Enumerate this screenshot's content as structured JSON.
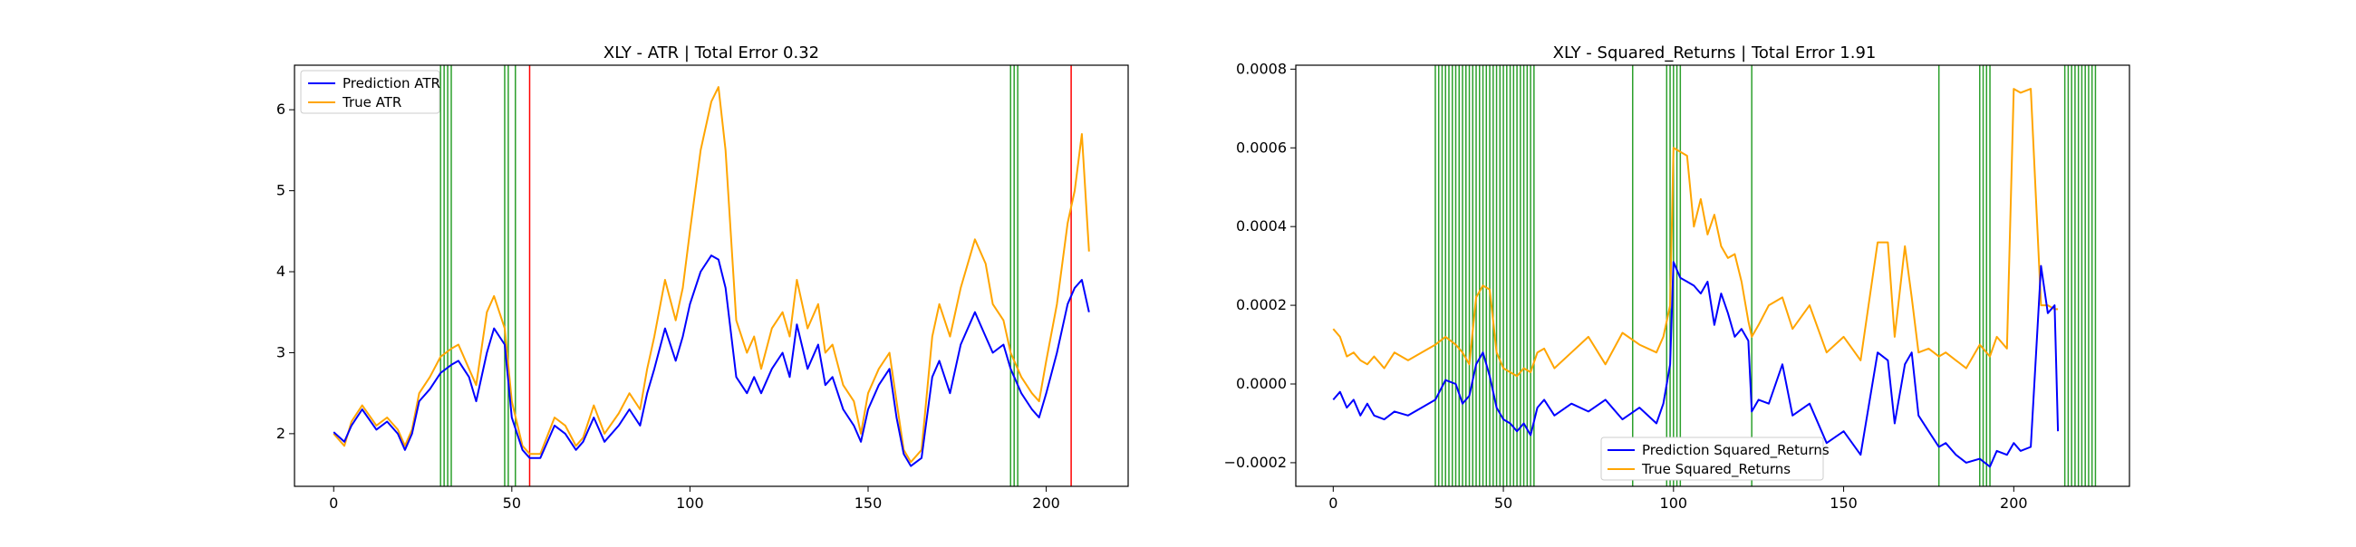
{
  "figure": {
    "background": "#ffffff",
    "colors": {
      "prediction": "#0000ff",
      "true": "#ffa500",
      "green_marker": "#2ca02c",
      "red_marker": "#ff0000"
    }
  },
  "chart_data": [
    {
      "type": "line",
      "title": "XLY - ATR | Total Error 0.32",
      "xlabel": "",
      "ylabel": "",
      "xlim": [
        -11,
        223
      ],
      "ylim": [
        1.35,
        6.55
      ],
      "xticks": [
        0,
        50,
        100,
        150,
        200
      ],
      "yticks": [
        2,
        3,
        4,
        5,
        6
      ],
      "grid": false,
      "legend_placement": "top-left",
      "series": [
        {
          "name": "Prediction ATR",
          "color": "#0000ff",
          "x": [
            0,
            3,
            5,
            8,
            12,
            15,
            18,
            20,
            22,
            24,
            27,
            30,
            33,
            35,
            38,
            40,
            43,
            45,
            48,
            50,
            53,
            55,
            58,
            62,
            65,
            68,
            70,
            73,
            76,
            80,
            83,
            86,
            88,
            90,
            93,
            96,
            98,
            100,
            103,
            106,
            108,
            110,
            113,
            116,
            118,
            120,
            123,
            126,
            128,
            130,
            133,
            136,
            138,
            140,
            143,
            146,
            148,
            150,
            153,
            156,
            158,
            160,
            162,
            165,
            168,
            170,
            173,
            176,
            180,
            183,
            185,
            188,
            190,
            193,
            196,
            198,
            200,
            203,
            206,
            208,
            210,
            212
          ],
          "y": [
            2.02,
            1.9,
            2.1,
            2.3,
            2.05,
            2.15,
            2.0,
            1.8,
            2.0,
            2.4,
            2.55,
            2.75,
            2.85,
            2.9,
            2.7,
            2.4,
            3.0,
            3.3,
            3.1,
            2.2,
            1.8,
            1.7,
            1.7,
            2.1,
            2.0,
            1.8,
            1.9,
            2.2,
            1.9,
            2.1,
            2.3,
            2.1,
            2.5,
            2.8,
            3.3,
            2.9,
            3.2,
            3.6,
            4.0,
            4.2,
            4.15,
            3.8,
            2.7,
            2.5,
            2.7,
            2.5,
            2.8,
            3.0,
            2.7,
            3.35,
            2.8,
            3.1,
            2.6,
            2.7,
            2.3,
            2.1,
            1.9,
            2.3,
            2.6,
            2.8,
            2.2,
            1.75,
            1.6,
            1.7,
            2.7,
            2.9,
            2.5,
            3.1,
            3.5,
            3.2,
            3.0,
            3.1,
            2.8,
            2.5,
            2.3,
            2.2,
            2.5,
            3.0,
            3.6,
            3.8,
            3.9,
            3.5
          ]
        },
        {
          "name": "True ATR",
          "color": "#ffa500",
          "x": [
            0,
            3,
            5,
            8,
            12,
            15,
            18,
            20,
            22,
            24,
            27,
            30,
            33,
            35,
            38,
            40,
            43,
            45,
            48,
            50,
            53,
            55,
            58,
            62,
            65,
            68,
            70,
            73,
            76,
            80,
            83,
            86,
            88,
            90,
            93,
            96,
            98,
            100,
            103,
            106,
            108,
            110,
            113,
            116,
            118,
            120,
            123,
            126,
            128,
            130,
            133,
            136,
            138,
            140,
            143,
            146,
            148,
            150,
            153,
            156,
            158,
            160,
            162,
            165,
            168,
            170,
            173,
            176,
            180,
            183,
            185,
            188,
            190,
            193,
            196,
            198,
            200,
            203,
            206,
            208,
            210,
            212
          ],
          "y": [
            2.0,
            1.85,
            2.15,
            2.35,
            2.1,
            2.2,
            2.05,
            1.85,
            2.05,
            2.5,
            2.7,
            2.95,
            3.05,
            3.1,
            2.8,
            2.6,
            3.5,
            3.7,
            3.3,
            2.4,
            1.85,
            1.75,
            1.75,
            2.2,
            2.1,
            1.85,
            1.95,
            2.35,
            2.0,
            2.25,
            2.5,
            2.3,
            2.8,
            3.2,
            3.9,
            3.4,
            3.8,
            4.5,
            5.5,
            6.1,
            6.28,
            5.5,
            3.4,
            3.0,
            3.2,
            2.8,
            3.3,
            3.5,
            3.2,
            3.9,
            3.3,
            3.6,
            3.0,
            3.1,
            2.6,
            2.4,
            2.0,
            2.5,
            2.8,
            3.0,
            2.4,
            1.8,
            1.65,
            1.8,
            3.2,
            3.6,
            3.2,
            3.8,
            4.4,
            4.1,
            3.6,
            3.4,
            3.0,
            2.7,
            2.5,
            2.4,
            2.9,
            3.6,
            4.6,
            5.0,
            5.7,
            4.25
          ]
        }
      ],
      "markers": {
        "green_x": [
          30,
          31,
          32,
          33,
          48,
          49,
          51,
          190,
          191,
          192
        ],
        "red_x": [
          55,
          207
        ]
      }
    },
    {
      "type": "line",
      "title": "XLY - Squared_Returns | Total Error 1.91",
      "xlabel": "",
      "ylabel": "",
      "xlim": [
        -11,
        234
      ],
      "ylim": [
        -0.00026,
        0.00081
      ],
      "xticks": [
        0,
        50,
        100,
        150,
        200
      ],
      "yticks": [
        -0.0002,
        0.0,
        0.0002,
        0.0004,
        0.0006,
        0.0008
      ],
      "ytick_labels": [
        "−0.0002",
        "0.0000",
        "0.0002",
        "0.0004",
        "0.0006",
        "0.0008"
      ],
      "grid": false,
      "legend_placement": "lower center",
      "series": [
        {
          "name": "Prediction Squared_Returns",
          "color": "#0000ff",
          "x": [
            0,
            2,
            4,
            6,
            8,
            10,
            12,
            15,
            18,
            22,
            26,
            30,
            33,
            36,
            38,
            40,
            42,
            44,
            46,
            48,
            50,
            52,
            54,
            56,
            58,
            60,
            62,
            65,
            70,
            75,
            80,
            85,
            90,
            95,
            97,
            99,
            100,
            102,
            104,
            106,
            108,
            110,
            112,
            114,
            116,
            118,
            120,
            122,
            123,
            125,
            128,
            132,
            135,
            140,
            145,
            150,
            155,
            160,
            163,
            165,
            168,
            170,
            172,
            175,
            178,
            180,
            183,
            186,
            190,
            193,
            195,
            198,
            200,
            202,
            205,
            208,
            210,
            212,
            213
          ],
          "y": [
            -4e-05,
            -2e-05,
            -6e-05,
            -4e-05,
            -8e-05,
            -5e-05,
            -8e-05,
            -9e-05,
            -7e-05,
            -8e-05,
            -6e-05,
            -4e-05,
            1e-05,
            0.0,
            -5e-05,
            -3e-05,
            5e-05,
            8e-05,
            2e-05,
            -6e-05,
            -9e-05,
            -0.0001,
            -0.00012,
            -0.0001,
            -0.00013,
            -6e-05,
            -4e-05,
            -8e-05,
            -5e-05,
            -7e-05,
            -4e-05,
            -9e-05,
            -6e-05,
            -0.0001,
            -5e-05,
            5e-05,
            0.00031,
            0.00027,
            0.00026,
            0.00025,
            0.00023,
            0.00026,
            0.00015,
            0.00023,
            0.00018,
            0.00012,
            0.00014,
            0.00011,
            -7e-05,
            -4e-05,
            -5e-05,
            5e-05,
            -8e-05,
            -5e-05,
            -0.00015,
            -0.00012,
            -0.00018,
            8e-05,
            6e-05,
            -0.0001,
            5e-05,
            8e-05,
            -8e-05,
            -0.00012,
            -0.00016,
            -0.00015,
            -0.00018,
            -0.0002,
            -0.00019,
            -0.00021,
            -0.00017,
            -0.00018,
            -0.00015,
            -0.00017,
            -0.00016,
            0.0003,
            0.00018,
            0.0002,
            -0.00012
          ]
        },
        {
          "name": "True Squared_Returns",
          "color": "#ffa500",
          "x": [
            0,
            2,
            4,
            6,
            8,
            10,
            12,
            15,
            18,
            22,
            26,
            30,
            33,
            36,
            38,
            40,
            42,
            44,
            46,
            48,
            50,
            52,
            54,
            56,
            58,
            60,
            62,
            65,
            70,
            75,
            80,
            85,
            90,
            95,
            97,
            99,
            100,
            102,
            104,
            106,
            108,
            110,
            112,
            114,
            116,
            118,
            120,
            122,
            123,
            125,
            128,
            132,
            135,
            140,
            145,
            150,
            155,
            160,
            163,
            165,
            168,
            170,
            172,
            175,
            178,
            180,
            183,
            186,
            190,
            193,
            195,
            198,
            200,
            202,
            205,
            208,
            210,
            212,
            213
          ],
          "y": [
            0.00014,
            0.00012,
            7e-05,
            8e-05,
            6e-05,
            5e-05,
            7e-05,
            4e-05,
            8e-05,
            6e-05,
            8e-05,
            0.0001,
            0.00012,
            0.0001,
            8e-05,
            5e-05,
            0.00022,
            0.00025,
            0.00024,
            8e-05,
            4e-05,
            3e-05,
            2e-05,
            4e-05,
            3e-05,
            8e-05,
            9e-05,
            4e-05,
            8e-05,
            0.00012,
            5e-05,
            0.00013,
            0.0001,
            8e-05,
            0.00012,
            0.0002,
            0.0006,
            0.00059,
            0.00058,
            0.0004,
            0.00047,
            0.00038,
            0.00043,
            0.00035,
            0.00032,
            0.00033,
            0.00026,
            0.00016,
            0.00012,
            0.00015,
            0.0002,
            0.00022,
            0.00014,
            0.0002,
            8e-05,
            0.00012,
            6e-05,
            0.00036,
            0.00036,
            0.00012,
            0.00035,
            0.00022,
            8e-05,
            9e-05,
            7e-05,
            8e-05,
            6e-05,
            4e-05,
            0.0001,
            7e-05,
            0.00012,
            9e-05,
            0.00075,
            0.00074,
            0.00075,
            0.0002,
            0.0002,
            0.00019,
            0.00019
          ]
        }
      ],
      "markers": {
        "green_x": [
          30,
          31,
          32,
          33,
          34,
          35,
          36,
          37,
          38,
          39,
          40,
          41,
          42,
          43,
          44,
          45,
          46,
          47,
          48,
          49,
          50,
          51,
          52,
          53,
          54,
          55,
          56,
          57,
          58,
          59,
          88,
          98,
          99,
          100,
          101,
          102,
          123,
          178,
          190,
          191,
          192,
          193,
          215,
          216,
          217,
          218,
          219,
          220,
          221,
          222,
          223,
          224
        ],
        "red_x": []
      }
    }
  ]
}
